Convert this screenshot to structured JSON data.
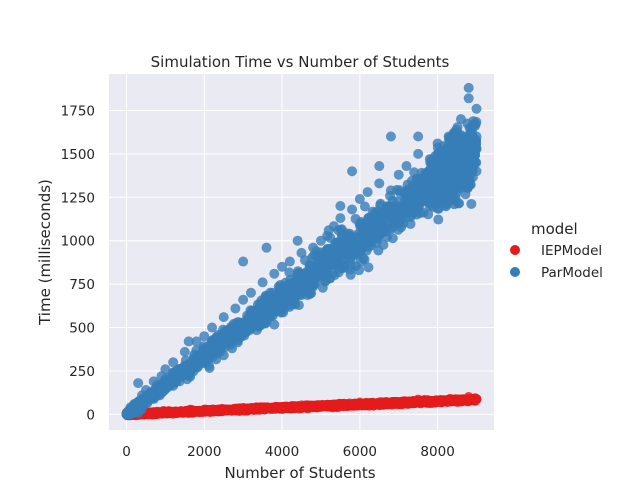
{
  "chart_data": {
    "type": "scatter",
    "title": "Simulation Time vs Number of Students",
    "xlabel": "Number of Students",
    "ylabel": "Time (milliseconds)",
    "xlim": [
      -450,
      9450
    ],
    "ylim": [
      -90,
      1960
    ],
    "xticks": [
      0,
      2000,
      4000,
      6000,
      8000
    ],
    "xtick_labels": [
      "0",
      "2000",
      "4000",
      "6000",
      "8000"
    ],
    "yticks": [
      0,
      250,
      500,
      750,
      1000,
      1250,
      1500,
      1750
    ],
    "ytick_labels": [
      "0",
      "250",
      "500",
      "750",
      "1000",
      "1250",
      "1500",
      "1750"
    ],
    "grid": true,
    "legend": {
      "title": "model",
      "position": "right",
      "entries": [
        "IEPModel",
        "ParModel"
      ]
    },
    "series": [
      {
        "name": "IEPModel",
        "color": "#e41a1c",
        "x_range": [
          0,
          9000
        ],
        "y_trend": "approximately linear, y ≈ 0.0095 * x",
        "points": [
          [
            0,
            2
          ],
          [
            100,
            3
          ],
          [
            250,
            4
          ],
          [
            400,
            5
          ],
          [
            600,
            6
          ],
          [
            800,
            8
          ],
          [
            1000,
            10
          ],
          [
            1200,
            11
          ],
          [
            1500,
            14
          ],
          [
            1800,
            17
          ],
          [
            2000,
            19
          ],
          [
            2200,
            21
          ],
          [
            2500,
            24
          ],
          [
            2800,
            27
          ],
          [
            3000,
            29
          ],
          [
            3300,
            31
          ],
          [
            3600,
            34
          ],
          [
            4000,
            38
          ],
          [
            4300,
            41
          ],
          [
            4600,
            44
          ],
          [
            5000,
            48
          ],
          [
            5300,
            50
          ],
          [
            5600,
            53
          ],
          [
            6000,
            57
          ],
          [
            6300,
            60
          ],
          [
            6600,
            63
          ],
          [
            7000,
            66
          ],
          [
            7300,
            69
          ],
          [
            7600,
            72
          ],
          [
            8000,
            76
          ],
          [
            8300,
            79
          ],
          [
            8600,
            82
          ],
          [
            8900,
            85
          ],
          [
            9000,
            88
          ],
          [
            8800,
            100
          ],
          [
            7500,
            85
          ],
          [
            6000,
            68
          ],
          [
            4500,
            52
          ],
          [
            3000,
            36
          ]
        ]
      },
      {
        "name": "ParModel",
        "color": "#377eb8",
        "x_range": [
          0,
          9000
        ],
        "y_trend": "approximately linear, y ≈ 0.17 * x with widening spread",
        "points": [
          [
            0,
            5
          ],
          [
            50,
            20
          ],
          [
            100,
            40
          ],
          [
            200,
            60
          ],
          [
            300,
            180
          ],
          [
            400,
            110
          ],
          [
            500,
            140
          ],
          [
            700,
            190
          ],
          [
            900,
            220
          ],
          [
            1000,
            260
          ],
          [
            1200,
            300
          ],
          [
            1500,
            360
          ],
          [
            1800,
            420
          ],
          [
            2000,
            450
          ],
          [
            2200,
            500
          ],
          [
            2500,
            560
          ],
          [
            2800,
            610
          ],
          [
            3000,
            880
          ],
          [
            3000,
            660
          ],
          [
            3200,
            700
          ],
          [
            3500,
            760
          ],
          [
            3800,
            810
          ],
          [
            4000,
            850
          ],
          [
            4200,
            880
          ],
          [
            4500,
            930
          ],
          [
            4800,
            960
          ],
          [
            5000,
            1000
          ],
          [
            5200,
            1060
          ],
          [
            5500,
            1130
          ],
          [
            5500,
            1200
          ],
          [
            5800,
            1180
          ],
          [
            6000,
            1240
          ],
          [
            6200,
            1280
          ],
          [
            6500,
            1330
          ],
          [
            6500,
            1430
          ],
          [
            6800,
            1290
          ],
          [
            7000,
            1380
          ],
          [
            7200,
            1430
          ],
          [
            7500,
            1500
          ],
          [
            7500,
            1600
          ],
          [
            7800,
            1470
          ],
          [
            8000,
            1560
          ],
          [
            8200,
            1520
          ],
          [
            8400,
            1600
          ],
          [
            8600,
            1700
          ],
          [
            8800,
            1820
          ],
          [
            8800,
            1880
          ],
          [
            8900,
            1550
          ],
          [
            9000,
            1600
          ],
          [
            9000,
            1760
          ],
          [
            9000,
            1400
          ],
          [
            1600,
            420
          ],
          [
            3600,
            960
          ],
          [
            4400,
            1000
          ],
          [
            5800,
            1400
          ],
          [
            6800,
            1600
          ]
        ]
      }
    ]
  }
}
